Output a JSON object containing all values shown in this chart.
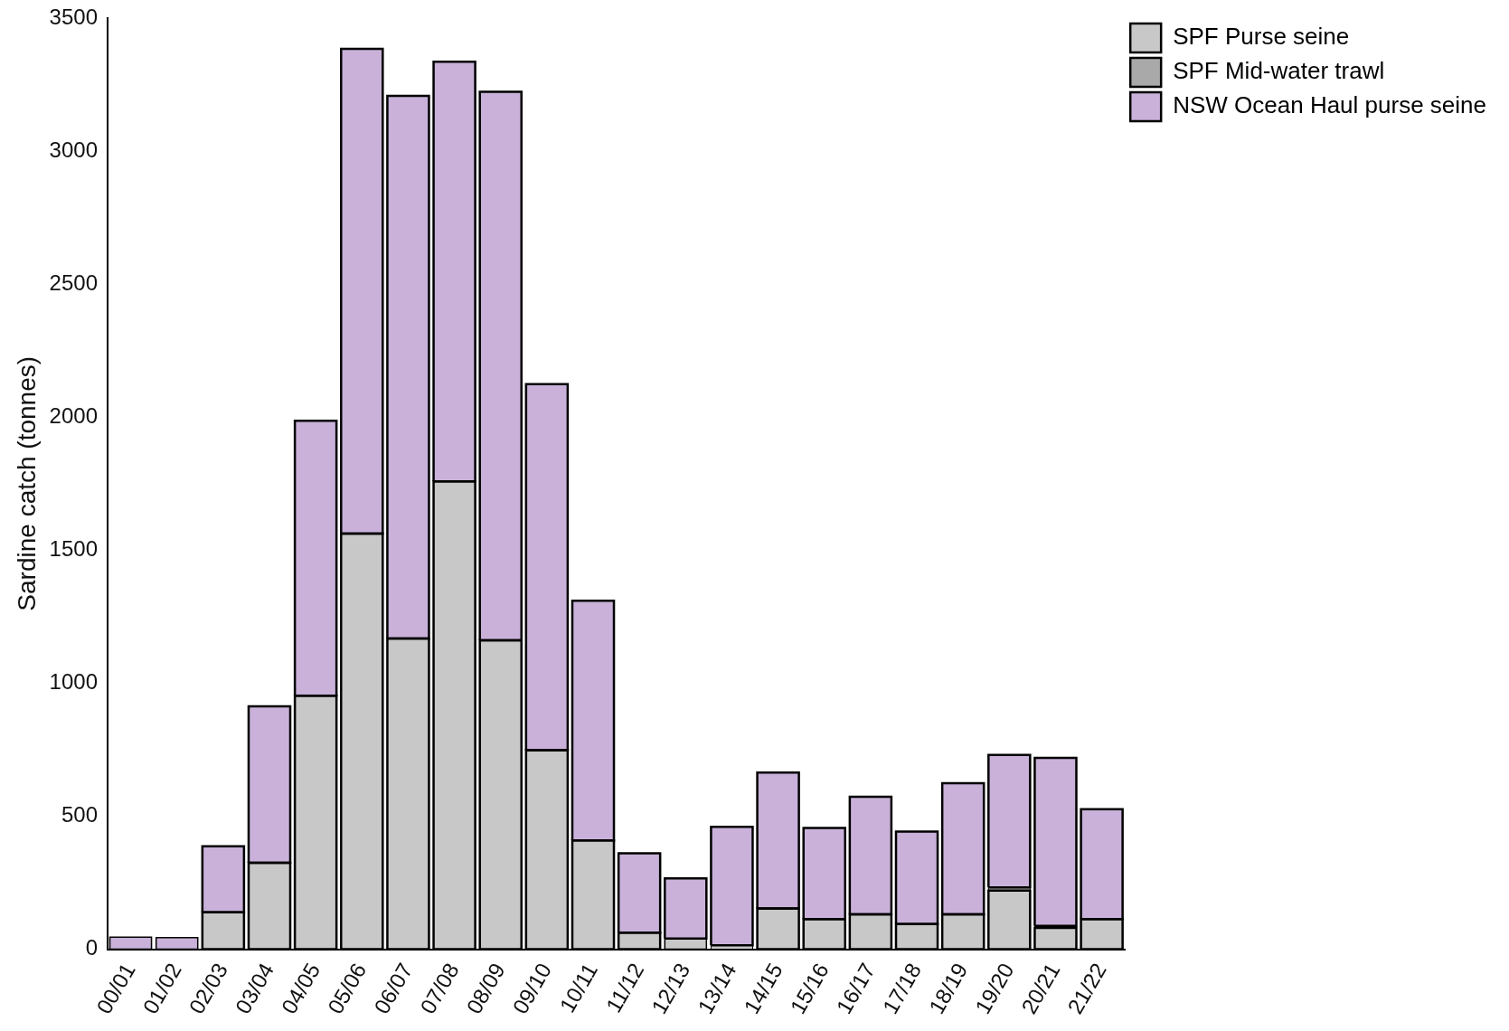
{
  "chart_data": {
    "type": "bar",
    "stacked": true,
    "ylabel": "Sardine catch (tonnes)",
    "categories": [
      "00/01",
      "01/02",
      "02/03",
      "03/04",
      "04/05",
      "05/06",
      "06/07",
      "07/08",
      "08/09",
      "09/10",
      "10/11",
      "11/12",
      "12/13",
      "13/14",
      "14/15",
      "15/16",
      "16/17",
      "17/18",
      "18/19",
      "19/20",
      "20/21",
      "21/22"
    ],
    "series": [
      {
        "name": "SPF Purse seine",
        "color": "#c8c8c8",
        "values": [
          0,
          0,
          139,
          325,
          953,
          1562,
          1168,
          1759,
          1161,
          748,
          409,
          62,
          40,
          15,
          153,
          113,
          131,
          95,
          131,
          220,
          80,
          113
        ]
      },
      {
        "name": "SPF Mid-water trawl",
        "color": "#a9a9a9",
        "values": [
          0,
          0,
          0,
          0,
          0,
          0,
          0,
          0,
          0,
          0,
          0,
          0,
          0,
          0,
          0,
          0,
          0,
          0,
          0,
          12,
          8,
          0
        ]
      },
      {
        "name": "NSW Ocean Haul purse seine",
        "color": "#c9b1d9",
        "values": [
          45,
          44,
          248,
          588,
          1033,
          1822,
          2040,
          1577,
          2062,
          1376,
          901,
          299,
          226,
          445,
          511,
          343,
          442,
          347,
          493,
          498,
          631,
          413
        ]
      }
    ],
    "ylim": [
      0,
      3500
    ],
    "yticks": [
      0,
      500,
      1000,
      1500,
      2000,
      2500,
      3000,
      3500
    ],
    "grid": false,
    "legend": "right"
  }
}
